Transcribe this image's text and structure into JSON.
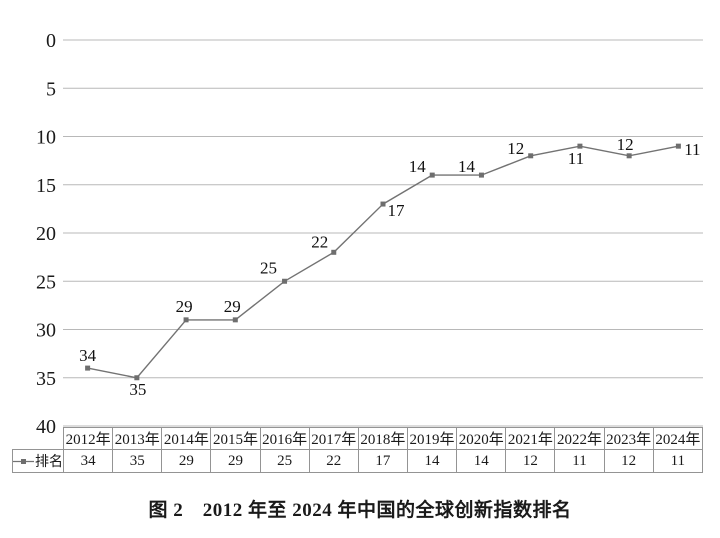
{
  "figure": {
    "caption": "图 2　2012 年至 2024 年中国的全球创新指数排名"
  },
  "legend": {
    "label": "排名",
    "marker_icon": "line-with-square-marker-icon"
  },
  "chart_data": {
    "type": "line",
    "title": "图 2 2012 年至 2024 年中国的全球创新指数排名",
    "categories": [
      "2012年",
      "2013年",
      "2014年",
      "2015年",
      "2016年",
      "2017年",
      "2018年",
      "2019年",
      "2020年",
      "2021年",
      "2022年",
      "2023年",
      "2024年"
    ],
    "series": [
      {
        "name": "排名",
        "values": [
          34,
          35,
          29,
          29,
          25,
          22,
          17,
          14,
          14,
          12,
          11,
          12,
          11
        ]
      }
    ],
    "xlabel": "",
    "ylabel": "",
    "y_axis": {
      "ticks": [
        0,
        5,
        10,
        15,
        20,
        25,
        30,
        35,
        40
      ],
      "range": [
        0,
        40
      ],
      "inverted": true
    },
    "grid": "horizontal",
    "legend_position": "data-table-left",
    "data_labels": true,
    "colors": {
      "line": "#737373",
      "marker": "#6e6e6e",
      "gridline": "#b8b8b8",
      "table_border": "#949494",
      "text": "#1a1a1a"
    }
  }
}
